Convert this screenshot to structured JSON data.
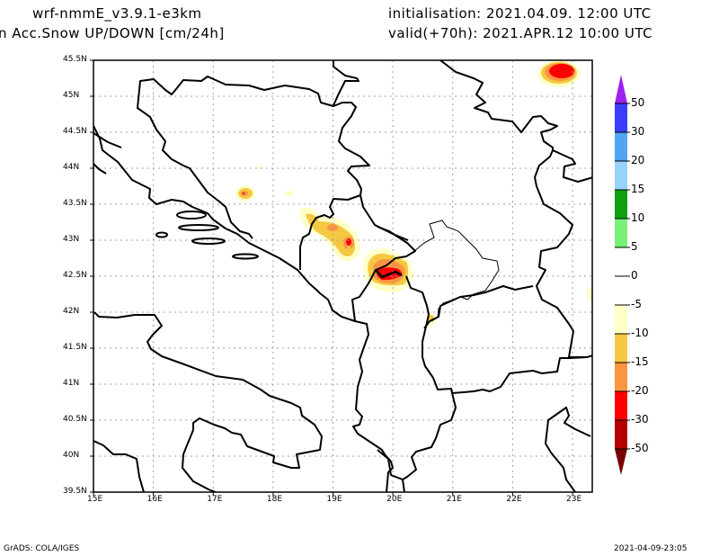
{
  "header": {
    "model": "wrf-nmmE_v3.9.1-e3km",
    "field": "n Acc.Snow UP/DOWN [cm/24h]",
    "initialisation": "initialisation: 2021.04.09.  12:00 UTC",
    "valid": "valid(+70h): 2021.APR.12 10:00 UTC"
  },
  "map": {
    "lon_labels": [
      "15E",
      "16E",
      "17E",
      "18E",
      "19E",
      "20E",
      "21E",
      "22E",
      "23E"
    ],
    "lat_labels": [
      "45.5N",
      "45N",
      "44.5N",
      "44N",
      "43.5N",
      "43N",
      "42.5N",
      "42N",
      "41.5N",
      "41N",
      "40.5N",
      "40N",
      "39.5N"
    ],
    "lon_range": [
      15,
      23.33
    ],
    "lat_range": [
      39.5,
      45.5
    ]
  },
  "colorbar": {
    "labels": [
      "50",
      "30",
      "20",
      "15",
      "10",
      "5",
      "0",
      "-5",
      "-10",
      "-15",
      "-20",
      "-30",
      "-50"
    ],
    "over_color": "#a020f0",
    "under_color": "#780000",
    "colors": [
      "#3c3cff",
      "#50a5f5",
      "#96d2fa",
      "#0fa00f",
      "#78f078",
      "#ffffff",
      "#ffffff",
      "#ffffc8",
      "#f5c841",
      "#fa9641",
      "#ff0000",
      "#b40000"
    ]
  },
  "footer": {
    "left": "GrADS: COLA/IGES",
    "right": "2021-04-09-23:05"
  }
}
